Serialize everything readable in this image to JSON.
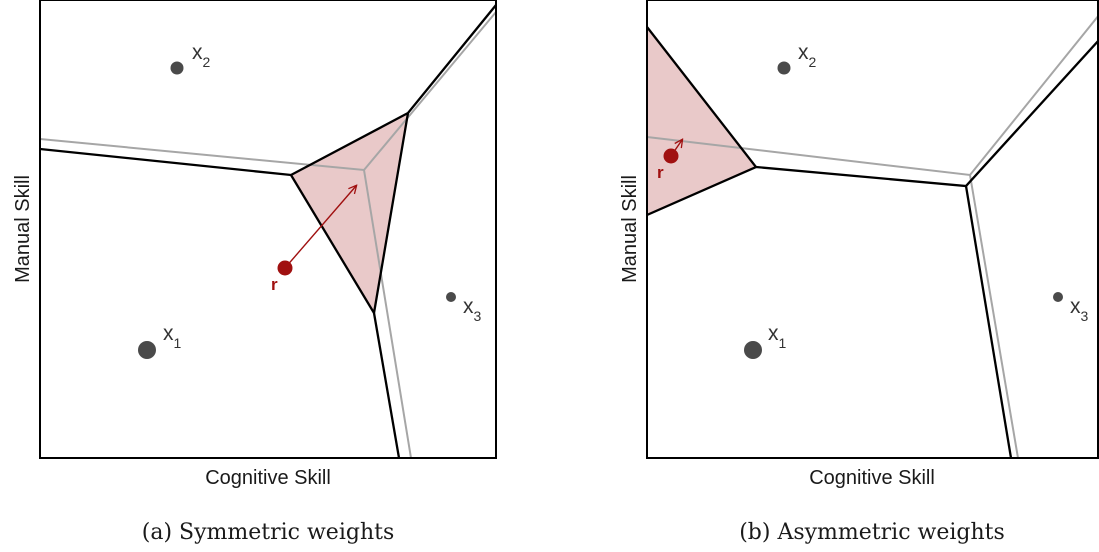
{
  "panels": [
    {
      "caption": "(a) Symmetric weights",
      "x_axis_label": "Cognitive Skill",
      "y_axis_label": "Manual Skill",
      "points": [
        {
          "name": "x",
          "sub": "1",
          "size": "large"
        },
        {
          "name": "x",
          "sub": "2",
          "size": "medium"
        },
        {
          "name": "x",
          "sub": "3",
          "size": "small"
        }
      ],
      "reference_label": "r",
      "weights": "symmetric"
    },
    {
      "caption": "(b) Asymmetric weights",
      "x_axis_label": "Cognitive Skill",
      "y_axis_label": "Manual Skill",
      "points": [
        {
          "name": "x",
          "sub": "1",
          "size": "large"
        },
        {
          "name": "x",
          "sub": "2",
          "size": "medium"
        },
        {
          "name": "x",
          "sub": "3",
          "size": "small"
        }
      ],
      "reference_label": "r",
      "weights": "asymmetric"
    }
  ],
  "colors": {
    "region_fill": "#e9c9c9",
    "reference_point": "#a01010",
    "boundary_weighted": "#000000",
    "boundary_unweighted": "#a6a6a6",
    "skill_points": "#4a4a4a"
  }
}
